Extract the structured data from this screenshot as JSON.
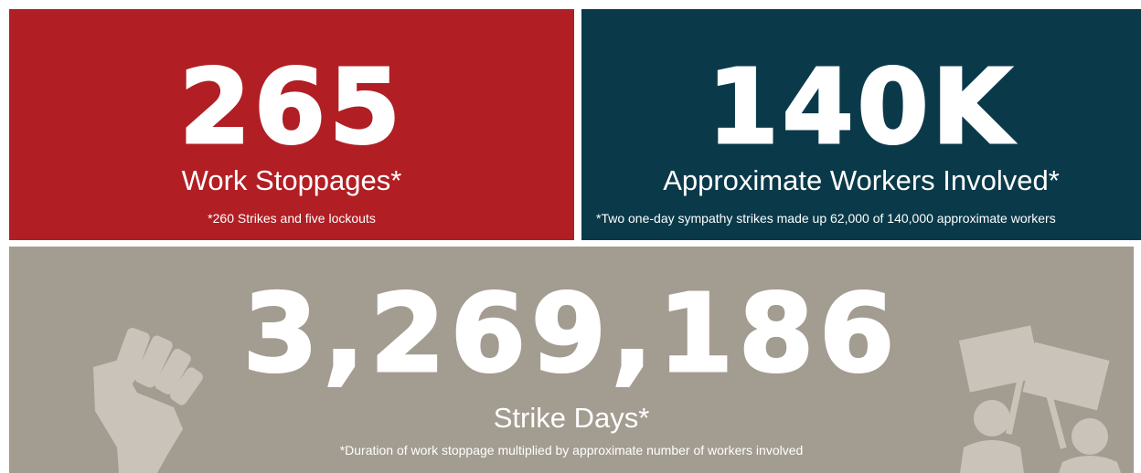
{
  "panels": [
    {
      "number": "265",
      "label": "Work Stoppages*",
      "note": "*260 Strikes and five lockouts"
    },
    {
      "number": "140K",
      "label": "Approximate Workers Involved*",
      "note": "*Two one-day sympathy strikes made up 62,000 of 140,000 approximate workers"
    },
    {
      "number": "3,269,186",
      "label": "Strike Days*",
      "note": "*Duration of work stoppage multiplied by approximate number of workers involved"
    }
  ]
}
